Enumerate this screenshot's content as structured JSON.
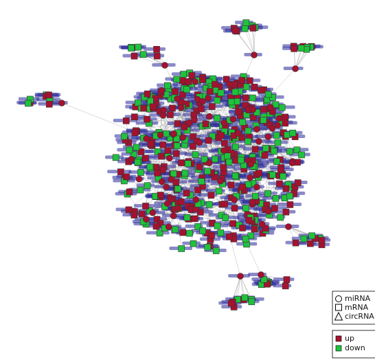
{
  "legend": {
    "shapes": [
      "miRNA",
      "mRNA",
      "circRNA"
    ],
    "regulation": [
      {
        "label": "up",
        "color": "#a5122f"
      },
      {
        "label": "down",
        "color": "#1fc23c"
      }
    ]
  }
}
